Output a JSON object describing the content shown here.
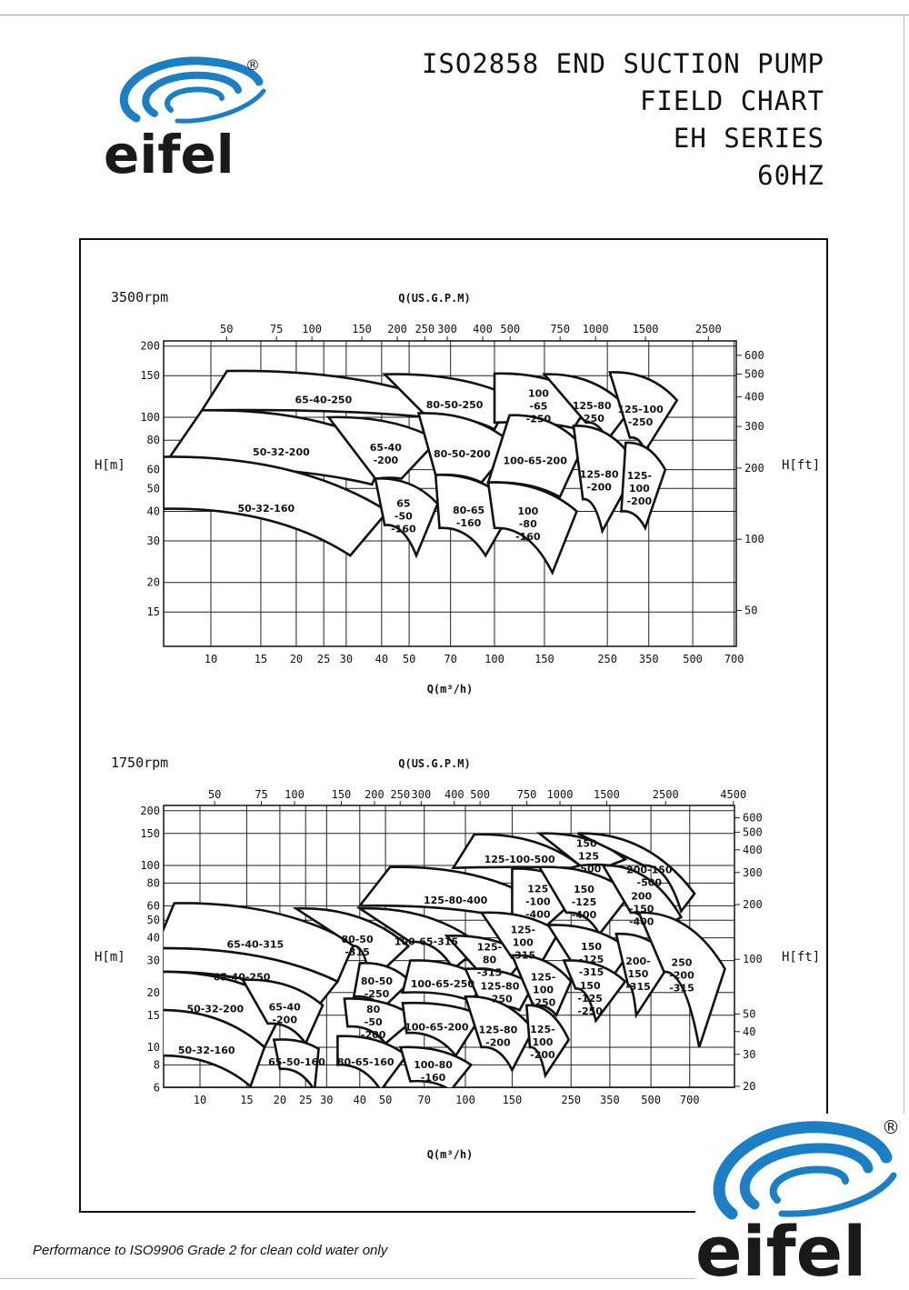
{
  "header": {
    "title_lines": [
      "ISO2858 END SUCTION PUMP",
      "FIELD CHART",
      "EH SERIES",
      "60HZ"
    ]
  },
  "logo": {
    "text": "eifel",
    "registered": "®",
    "colors": {
      "swoosh": "#1a7fc4",
      "text": "#1a1a1a"
    }
  },
  "footer": {
    "note": "Performance to ISO9906 Grade 2 for clean cold water only"
  },
  "chart_data": [
    {
      "type": "area",
      "speed_label": "3500rpm",
      "x_top_label": "Q(US.G.P.M)",
      "xlabel": "Q(m³/h)",
      "ylabel": "H[m]",
      "ylabel_right": "H[ft]",
      "x_scale": "log",
      "y_scale": "log",
      "grid": true,
      "xlim": [
        6.8,
        700
      ],
      "ylim": [
        10.7,
        200
      ],
      "x_ticks": [
        10,
        15,
        20,
        25,
        30,
        40,
        50,
        70,
        100,
        150,
        250,
        350,
        500,
        700
      ],
      "x_top_ticks_gpm": [
        50,
        75,
        100,
        150,
        200,
        250,
        300,
        400,
        500,
        750,
        1000,
        1500,
        2500
      ],
      "y_ticks": [
        200,
        150,
        100,
        80,
        60,
        50,
        40,
        30,
        20,
        15
      ],
      "y_right_ticks_ft": [
        600,
        500,
        400,
        300,
        200,
        100,
        50
      ],
      "regions": [
        {
          "label": "65-40-250",
          "corners": [
            [
              11.4,
              157
            ],
            [
              63,
              118
            ],
            [
              58,
              100
            ],
            [
              9.3,
              107
            ]
          ]
        },
        {
          "label": "50-32-200",
          "corners": [
            [
              9.3,
              107
            ],
            [
              42,
              75
            ],
            [
              37,
              52
            ],
            [
              6.8,
              62
            ]
          ]
        },
        {
          "label": "50-32-160",
          "corners": [
            [
              6.8,
              68
            ],
            [
              42,
              40
            ],
            [
              31,
              26
            ],
            [
              6.8,
              41
            ]
          ]
        },
        {
          "label": "80-50-250",
          "corners": [
            [
              41,
              152
            ],
            [
              115,
              122
            ],
            [
              100,
              89
            ],
            [
              58,
              100
            ]
          ]
        },
        {
          "label": "65-40\n-200",
          "corners": [
            [
              26,
              100
            ],
            [
              63,
              80
            ],
            [
              47,
              55
            ],
            [
              38,
              55
            ]
          ]
        },
        {
          "label": "65\n-50\n-160",
          "corners": [
            [
              38,
              55
            ],
            [
              63,
              43
            ],
            [
              53,
              26
            ],
            [
              41,
              35
            ]
          ]
        },
        {
          "label": "80-50-200",
          "corners": [
            [
              54,
              104
            ],
            [
              116,
              77
            ],
            [
              90,
              53
            ],
            [
              62,
              57
            ]
          ]
        },
        {
          "label": "80-65\n-160",
          "corners": [
            [
              62,
              57
            ],
            [
              117,
              42
            ],
            [
              93,
              26
            ],
            [
              64,
              34
            ]
          ]
        },
        {
          "label": "100\n-65\n-250",
          "corners": [
            [
              100,
              153
            ],
            [
              220,
              118
            ],
            [
              190,
              90
            ],
            [
              100,
              95
            ]
          ]
        },
        {
          "label": "100-65-200",
          "corners": [
            [
              113,
              102
            ],
            [
              205,
              75
            ],
            [
              170,
              46
            ],
            [
              95,
              53
            ]
          ]
        },
        {
          "label": "100\n-80\n-160",
          "corners": [
            [
              95,
              53
            ],
            [
              195,
              40
            ],
            [
              160,
              22
            ],
            [
              100,
              34
            ]
          ]
        },
        {
          "label": "125-80\n-250",
          "corners": [
            [
              150,
              152
            ],
            [
              300,
              107
            ],
            [
              250,
              80
            ],
            [
              210,
              95
            ]
          ]
        },
        {
          "label": "125-80\n-200",
          "corners": [
            [
              190,
              92
            ],
            [
              320,
              62
            ],
            [
              240,
              33
            ],
            [
              205,
              45
            ]
          ]
        },
        {
          "label": "125-100\n-250",
          "corners": [
            [
              255,
              155
            ],
            [
              440,
              118
            ],
            [
              340,
              72
            ],
            [
              300,
              82
            ]
          ]
        },
        {
          "label": "125-\n100\n-200",
          "corners": [
            [
              290,
              78
            ],
            [
              400,
              60
            ],
            [
              340,
              34
            ],
            [
              280,
              40
            ]
          ]
        }
      ]
    },
    {
      "type": "area",
      "speed_label": "1750rpm",
      "x_top_label": "Q(US.G.P.M)",
      "xlabel": "Q(m³/h)",
      "ylabel": "H[m]",
      "ylabel_right": "H[ft]",
      "x_scale": "log",
      "y_scale": "log",
      "grid": true,
      "xlim": [
        7.3,
        1000
      ],
      "ylim": [
        5.5,
        200
      ],
      "x_ticks": [
        10,
        15,
        20,
        25,
        30,
        40,
        50,
        70,
        100,
        150,
        250,
        350,
        500,
        700
      ],
      "x_top_ticks_gpm": [
        50,
        75,
        100,
        150,
        200,
        250,
        300,
        400,
        500,
        750,
        1000,
        1500,
        2500,
        4500
      ],
      "y_ticks": [
        200,
        150,
        100,
        80,
        60,
        50,
        40,
        30,
        20,
        15,
        10,
        8,
        6
      ],
      "y_right_ticks_ft": [
        600,
        500,
        400,
        300,
        200,
        100,
        50,
        40,
        30,
        20
      ],
      "regions": [
        {
          "label": "125-100-500",
          "corners": [
            [
              108,
              148
            ],
            [
              270,
              100
            ],
            [
              250,
              97
            ],
            [
              90,
              97
            ]
          ]
        },
        {
          "label": "150-\n125\n-500",
          "corners": [
            [
              190,
              150
            ],
            [
              400,
              108
            ],
            [
              350,
              100
            ],
            [
              270,
              100
            ]
          ]
        },
        {
          "label": "200-150\n-500",
          "corners": [
            [
              265,
              150
            ],
            [
              730,
              70
            ],
            [
              650,
              56
            ],
            [
              470,
              100
            ]
          ]
        },
        {
          "label": "125-80-400",
          "corners": [
            [
              52,
              98
            ],
            [
              195,
              62
            ],
            [
              175,
              48
            ],
            [
              40,
              60
            ]
          ]
        },
        {
          "label": "125\n-100\n-400",
          "corners": [
            [
              150,
              96
            ],
            [
              275,
              70
            ],
            [
              200,
              46
            ],
            [
              150,
              52
            ]
          ]
        },
        {
          "label": "150\n-125\n-400",
          "corners": [
            [
              190,
              98
            ],
            [
              420,
              70
            ],
            [
              320,
              42
            ],
            [
              240,
              55
            ]
          ]
        },
        {
          "label": "200\n-150\n-400",
          "corners": [
            [
              330,
              100
            ],
            [
              650,
              52
            ],
            [
              500,
              42
            ],
            [
              420,
              55
            ]
          ]
        },
        {
          "label": "65-40-315",
          "corners": [
            [
              8,
              62
            ],
            [
              38,
              37
            ],
            [
              33,
              23
            ],
            [
              6.8,
              35
            ]
          ]
        },
        {
          "label": "80-50\n-315",
          "corners": [
            [
              23,
              58
            ],
            [
              61,
              36
            ],
            [
              44,
              23
            ],
            [
              38,
              36
            ]
          ]
        },
        {
          "label": "100-65-315",
          "corners": [
            [
              40,
              58
            ],
            [
              115,
              36
            ],
            [
              90,
              27
            ],
            [
              62,
              38
            ]
          ]
        },
        {
          "label": "125-\n80\n-315",
          "corners": [
            [
              85,
              41
            ],
            [
              170,
              32
            ],
            [
              145,
              24
            ],
            [
              110,
              27
            ]
          ]
        },
        {
          "label": "125-\n100\n-315",
          "corners": [
            [
              115,
              55
            ],
            [
              225,
              43
            ],
            [
              190,
              28
            ],
            [
              150,
              31
            ]
          ]
        },
        {
          "label": "150\n-125\n-315",
          "corners": [
            [
              205,
              47
            ],
            [
              420,
              34
            ],
            [
              340,
              22
            ],
            [
              270,
              25
            ]
          ]
        },
        {
          "label": "200-\n150\n-315",
          "corners": [
            [
              370,
              42
            ],
            [
              600,
              30
            ],
            [
              440,
              15
            ],
            [
              410,
              22
            ]
          ]
        },
        {
          "label": "250\n-200\n-315",
          "corners": [
            [
              450,
              55
            ],
            [
              950,
              27
            ],
            [
              760,
              10
            ],
            [
              560,
              26
            ]
          ]
        },
        {
          "label": "65-40-250",
          "corners": [
            [
              6.8,
              35
            ],
            [
              33,
              23
            ],
            [
              28,
              17
            ],
            [
              6.8,
              26
            ]
          ]
        },
        {
          "label": "80-50\n-250",
          "corners": [
            [
              40,
              29
            ],
            [
              62,
              23
            ],
            [
              49,
              16.5
            ],
            [
              38,
              19
            ]
          ]
        },
        {
          "label": "100-65-250",
          "corners": [
            [
              62,
              30
            ],
            [
              120,
              23
            ],
            [
              105,
              18
            ],
            [
              58,
              20
            ]
          ]
        },
        {
          "label": "125-80\n-250",
          "corners": [
            [
              100,
              27
            ],
            [
              180,
              22
            ],
            [
              160,
              16
            ],
            [
              115,
              17
            ]
          ]
        },
        {
          "label": "125-\n100\n-250",
          "corners": [
            [
              150,
              32
            ],
            [
              250,
              23
            ],
            [
              220,
              15
            ],
            [
              180,
              17
            ]
          ]
        },
        {
          "label": "150\n-125\n-250",
          "corners": [
            [
              235,
              30
            ],
            [
              400,
              23
            ],
            [
              310,
              14
            ],
            [
              260,
              21
            ]
          ]
        },
        {
          "label": "50-32-200",
          "corners": [
            [
              6.8,
              26
            ],
            [
              21,
              17
            ],
            [
              17.5,
              10
            ],
            [
              6.8,
              16
            ]
          ]
        },
        {
          "label": "65-40\n-200",
          "corners": [
            [
              14.5,
              23.5
            ],
            [
              29,
              17
            ],
            [
              25,
              10.5
            ],
            [
              18,
              13.5
            ]
          ]
        },
        {
          "label": "80\n-50\n-200",
          "corners": [
            [
              35,
              18.5
            ],
            [
              65,
              14.5
            ],
            [
              50,
              10.5
            ],
            [
              36,
              13
            ]
          ]
        },
        {
          "label": "100-65-200",
          "corners": [
            [
              58,
              17.5
            ],
            [
              115,
              15
            ],
            [
              92,
              9
            ],
            [
              60,
              12
            ]
          ]
        },
        {
          "label": "125-80\n-200",
          "corners": [
            [
              100,
              19
            ],
            [
              180,
              12.5
            ],
            [
              150,
              7.5
            ],
            [
              115,
              10
            ]
          ]
        },
        {
          "label": "125-\n100\n-200",
          "corners": [
            [
              170,
              17
            ],
            [
              245,
              11
            ],
            [
              200,
              7
            ],
            [
              175,
              10
            ]
          ]
        },
        {
          "label": "50-32-160",
          "corners": [
            [
              6.8,
              16
            ],
            [
              17.5,
              10
            ],
            [
              15.5,
              6.1
            ],
            [
              6.8,
              9
            ]
          ]
        },
        {
          "label": "65-50-160",
          "corners": [
            [
              19,
              11
            ],
            [
              28,
              9.8
            ],
            [
              27,
              5.8
            ],
            [
              20,
              7.6
            ]
          ]
        },
        {
          "label": "80-65-160",
          "corners": [
            [
              33,
              11.5
            ],
            [
              60,
              9
            ],
            [
              48,
              5.8
            ],
            [
              33,
              8
            ]
          ]
        },
        {
          "label": "100-80\n-160",
          "corners": [
            [
              57,
              10
            ],
            [
              105,
              8
            ],
            [
              88,
              5.8
            ],
            [
              62,
              6.5
            ]
          ]
        }
      ]
    }
  ]
}
